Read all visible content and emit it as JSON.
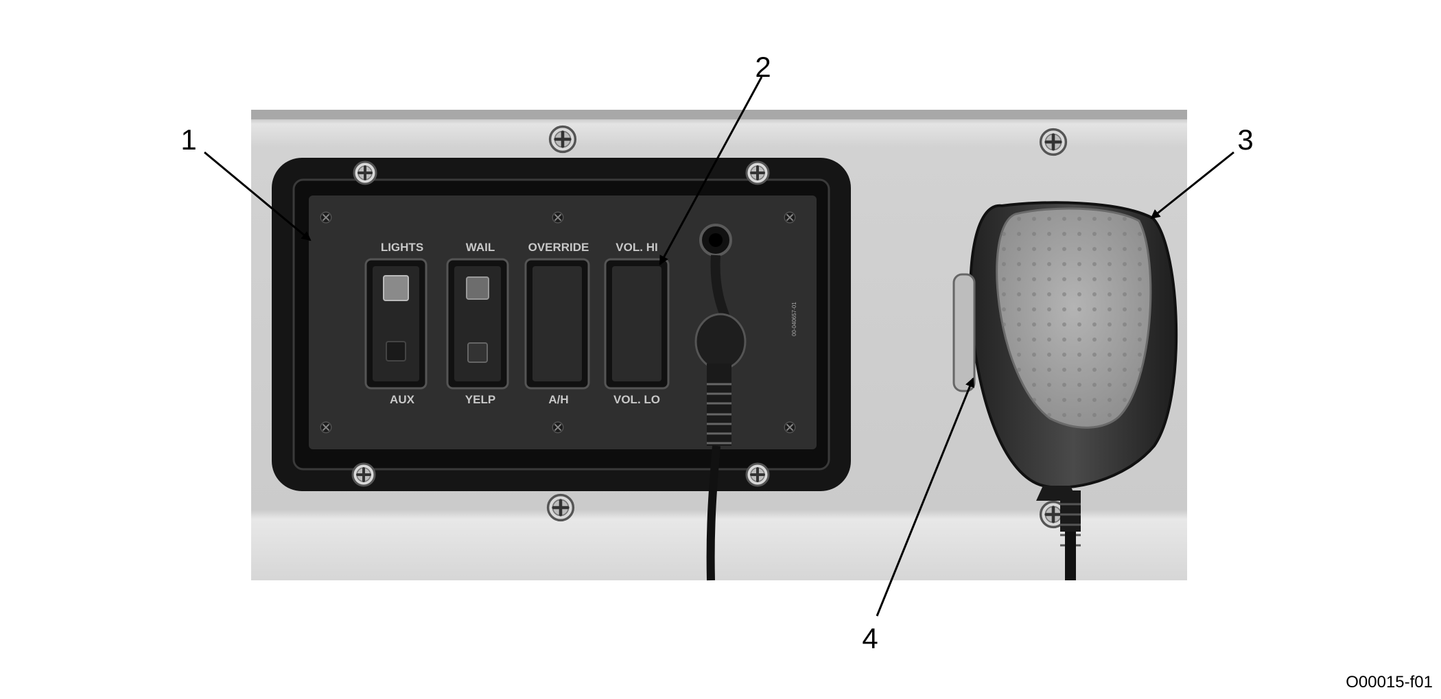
{
  "callouts": {
    "c1": "1",
    "c2": "2",
    "c3": "3",
    "c4": "4"
  },
  "panel": {
    "top_labels": [
      "LIGHTS",
      "WAIL",
      "OVERRIDE",
      "VOL. HI"
    ],
    "bottom_labels": [
      "AUX",
      "YELP",
      "A/H",
      "VOL. LO"
    ],
    "part_number": "00-040657-01"
  },
  "figure_id": "O00015-f01",
  "colors": {
    "background": "#ffffff",
    "metal_plate": "#cfcfcf",
    "bezel": "#1a1a1a",
    "panel_face": "#2e2e2e",
    "label_gray": "#c8c8c8",
    "mic_body": "#3a3a3a",
    "mic_grille": "#a9a9a9"
  },
  "icons": [
    "screw-icon",
    "rocker-switch-icon",
    "microphone-icon",
    "jack-icon",
    "arrow-icon"
  ]
}
